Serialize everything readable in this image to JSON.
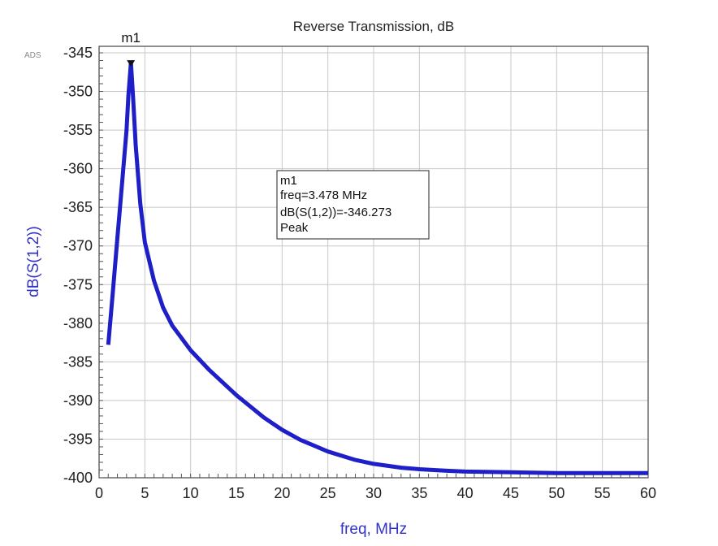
{
  "window_badge": "ADS",
  "chart_data": {
    "type": "line",
    "title": "Reverse Transmission, dB",
    "xlabel": "freq, MHz",
    "ylabel": "dB(S(1,2))",
    "xlim": [
      0,
      60
    ],
    "ylim": [
      -400,
      -345
    ],
    "x_ticks": [
      0,
      5,
      10,
      15,
      20,
      25,
      30,
      35,
      40,
      45,
      50,
      55,
      60
    ],
    "y_ticks": [
      -345,
      -350,
      -355,
      -360,
      -365,
      -370,
      -375,
      -380,
      -385,
      -390,
      -395,
      -400
    ],
    "grid": true,
    "series_color": "#1f1fc8",
    "series": [
      {
        "x": [
          1.0,
          1.5,
          2.0,
          2.5,
          3.0,
          3.2,
          3.478,
          3.7,
          4.0,
          4.5,
          5.0,
          6.0,
          7.0,
          8.0,
          10.0,
          12.0,
          15.0,
          18.0,
          20.0,
          22.0,
          25.0,
          28.0,
          30.0,
          33.0,
          35.0,
          38.0,
          40.0,
          45.0,
          50.0,
          55.0,
          60.0
        ],
        "y": [
          -382.8,
          -376.0,
          -369.0,
          -362.0,
          -355.0,
          -350.5,
          -346.273,
          -350.5,
          -357.0,
          -364.5,
          -369.5,
          -374.5,
          -378.0,
          -380.3,
          -383.5,
          -386.0,
          -389.3,
          -392.2,
          -393.8,
          -395.1,
          -396.6,
          -397.7,
          -398.2,
          -398.7,
          -398.9,
          -399.1,
          -399.2,
          -399.3,
          -399.4,
          -399.4,
          -399.4
        ]
      }
    ],
    "marker": {
      "name": "m1",
      "x": 3.478,
      "y": -346.273,
      "lines": [
        "m1",
        "freq=3.478 MHz",
        "dB(S(1,2))=-346.273",
        "Peak"
      ]
    }
  }
}
